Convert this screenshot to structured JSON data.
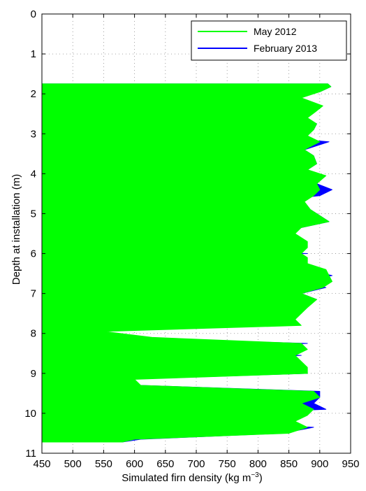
{
  "chart_data": {
    "type": "area",
    "orientation": "vertical-profile",
    "xlabel": "Simulated firn density (kg m",
    "xlabel_sup": "−3",
    "xlabel_close": ")",
    "ylabel": "Depth at installation (m)",
    "xlim": [
      450,
      950
    ],
    "ylim": [
      0,
      11
    ],
    "y_reversed": true,
    "grid": true,
    "legend_position": "top-right",
    "x_ticks": [
      "450",
      "500",
      "550",
      "600",
      "650",
      "700",
      "750",
      "800",
      "850",
      "900",
      "950"
    ],
    "y_ticks": [
      "0",
      "1",
      "2",
      "3",
      "4",
      "5",
      "6",
      "7",
      "8",
      "9",
      "10",
      "11"
    ],
    "series": [
      {
        "name": "May 2012",
        "color": "#00ff00",
        "fill": "#00ff00",
        "depth": [
          1.75,
          1.82,
          1.95,
          2.1,
          2.3,
          2.45,
          2.6,
          2.75,
          2.9,
          3.05,
          3.2,
          3.4,
          3.55,
          3.75,
          3.9,
          4.05,
          4.25,
          4.4,
          4.55,
          4.7,
          4.9,
          5.05,
          5.2,
          5.35,
          5.5,
          5.7,
          5.85,
          6.0,
          6.1,
          6.25,
          6.4,
          6.55,
          6.7,
          6.85,
          7.0,
          7.15,
          7.35,
          7.5,
          7.65,
          7.8,
          7.95,
          8.1,
          8.25,
          8.4,
          8.55,
          8.7,
          8.85,
          9.0,
          9.15,
          9.3,
          9.45,
          9.6,
          9.75,
          9.9,
          10.05,
          10.2,
          10.35,
          10.5,
          10.65,
          10.72
        ],
        "density": [
          913,
          918,
          900,
          870,
          905,
          893,
          880,
          895,
          890,
          880,
          900,
          875,
          890,
          895,
          880,
          910,
          895,
          900,
          890,
          875,
          885,
          900,
          915,
          870,
          860,
          880,
          880,
          870,
          880,
          880,
          910,
          915,
          920,
          905,
          870,
          895,
          880,
          870,
          860,
          870,
          550,
          630,
          870,
          880,
          860,
          870,
          880,
          880,
          600,
          610,
          890,
          900,
          870,
          890,
          880,
          860,
          880,
          850,
          600,
          580
        ]
      },
      {
        "name": "February 2013",
        "color": "#0000ff",
        "fill": "#0000ff",
        "depth": [
          1.75,
          1.82,
          1.95,
          2.1,
          2.3,
          2.45,
          2.6,
          2.75,
          2.9,
          3.05,
          3.2,
          3.4,
          3.55,
          3.75,
          3.9,
          4.05,
          4.25,
          4.4,
          4.55,
          4.7,
          4.9,
          5.05,
          5.2,
          5.35,
          5.5,
          5.7,
          5.85,
          6.0,
          6.1,
          6.25,
          6.4,
          6.55,
          6.7,
          6.85,
          7.0,
          7.15,
          7.35,
          7.5,
          7.65,
          7.8,
          7.95,
          8.1,
          8.25,
          8.4,
          8.55,
          8.7,
          8.85,
          9.0,
          9.15,
          9.3,
          9.45,
          9.6,
          9.75,
          9.9,
          10.05,
          10.2,
          10.35,
          10.5,
          10.65,
          10.72
        ],
        "density": [
          913,
          918,
          900,
          560,
          870,
          560,
          870,
          895,
          890,
          800,
          915,
          875,
          890,
          895,
          880,
          610,
          895,
          920,
          900,
          810,
          885,
          900,
          915,
          870,
          700,
          800,
          580,
          880,
          555,
          680,
          880,
          920,
          860,
          910,
          870,
          895,
          760,
          870,
          810,
          540,
          540,
          560,
          880,
          620,
          870,
          620,
          740,
          880,
          580,
          610,
          900,
          900,
          890,
          910,
          660,
          640,
          890,
          840,
          610,
          580
        ]
      }
    ]
  },
  "legend": {
    "items": [
      {
        "label": "May 2012",
        "color": "#00ff00"
      },
      {
        "label": "February 2013",
        "color": "#0000ff"
      }
    ]
  }
}
